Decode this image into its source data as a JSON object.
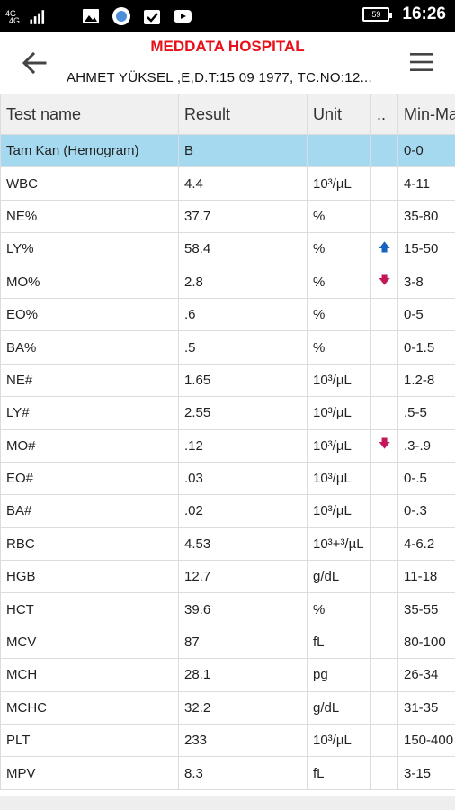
{
  "status_bar": {
    "network_label_top": "4G",
    "network_label_bottom": "4G",
    "battery": "59",
    "time": "16:26",
    "icons": [
      "image-icon",
      "globe-icon",
      "check-icon",
      "youtube-icon"
    ]
  },
  "header": {
    "title": "MEDDATA HOSPITAL",
    "patient": "AHMET YÜKSEL ,E,D.T:15 09 1977, TC.NO:12..."
  },
  "table": {
    "columns": [
      "Test name",
      "Result",
      "Unit",
      "..",
      "Min-Max"
    ],
    "rows": [
      {
        "name": "Tam Kan (Hemogram)",
        "result": "B",
        "unit": "",
        "flag": "",
        "range": "0-0",
        "highlight": true
      },
      {
        "name": "WBC",
        "result": "4.4",
        "unit": "10³/µL",
        "flag": "",
        "range": "4-11"
      },
      {
        "name": "NE%",
        "result": "37.7",
        "unit": "%",
        "flag": "",
        "range": "35-80"
      },
      {
        "name": "LY%",
        "result": "58.4",
        "unit": "%",
        "flag": "up",
        "range": "15-50"
      },
      {
        "name": "MO%",
        "result": "2.8",
        "unit": "%",
        "flag": "down",
        "range": "3-8"
      },
      {
        "name": "EO%",
        "result": ".6",
        "unit": "%",
        "flag": "",
        "range": "0-5"
      },
      {
        "name": "BA%",
        "result": ".5",
        "unit": "%",
        "flag": "",
        "range": "0-1.5"
      },
      {
        "name": "NE#",
        "result": "1.65",
        "unit": "10³/µL",
        "flag": "",
        "range": "1.2-8"
      },
      {
        "name": "LY#",
        "result": "2.55",
        "unit": "10³/µL",
        "flag": "",
        "range": ".5-5"
      },
      {
        "name": "MO#",
        "result": ".12",
        "unit": "10³/µL",
        "flag": "down",
        "range": ".3-.9"
      },
      {
        "name": "EO#",
        "result": ".03",
        "unit": "10³/µL",
        "flag": "",
        "range": "0-.5"
      },
      {
        "name": "BA#",
        "result": ".02",
        "unit": "10³/µL",
        "flag": "",
        "range": "0-.3"
      },
      {
        "name": "RBC",
        "result": "4.53",
        "unit": "10³+³/µL",
        "flag": "",
        "range": "4-6.2"
      },
      {
        "name": "HGB",
        "result": "12.7",
        "unit": "g/dL",
        "flag": "",
        "range": "11-18"
      },
      {
        "name": "HCT",
        "result": "39.6",
        "unit": "%",
        "flag": "",
        "range": "35-55"
      },
      {
        "name": "MCV",
        "result": "87",
        "unit": "fL",
        "flag": "",
        "range": "80-100"
      },
      {
        "name": "MCH",
        "result": "28.1",
        "unit": "pg",
        "flag": "",
        "range": "26-34"
      },
      {
        "name": "MCHC",
        "result": "32.2",
        "unit": "g/dL",
        "flag": "",
        "range": "31-35"
      },
      {
        "name": "PLT",
        "result": "233",
        "unit": "10³/µL",
        "flag": "",
        "range": "150-400"
      },
      {
        "name": "MPV",
        "result": "8.3",
        "unit": "fL",
        "flag": "",
        "range": "3-15"
      }
    ]
  },
  "colors": {
    "title": "#e8101a",
    "highlight_row": "#a5d9f0",
    "arrow_up": "#1565c0",
    "arrow_down": "#c2185b"
  }
}
